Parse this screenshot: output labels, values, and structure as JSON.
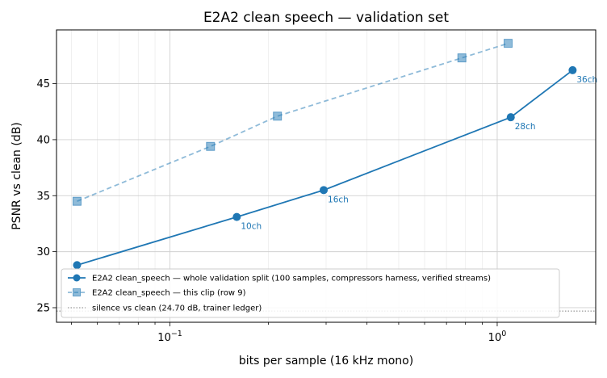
{
  "chart_data": {
    "type": "line",
    "title": "E2A2 clean speech — validation set",
    "xlabel": "bits per sample (16 kHz mono)",
    "ylabel": "PSNR vs clean (dB)",
    "xscale": "log",
    "xlim": [
      0.045,
      2.0
    ],
    "ylim": [
      23.7,
      49.8
    ],
    "x_ticks": [
      {
        "value": 0.1,
        "base": "10",
        "exp": "−1"
      },
      {
        "value": 1,
        "base": "10",
        "exp": "0"
      }
    ],
    "y_ticks": [
      25,
      30,
      35,
      40,
      45
    ],
    "grid": true,
    "legend_position": "lower-left",
    "series": [
      {
        "name": "E2A2 clean_speech — whole validation split (100 samples, compressors harness, verified streams)",
        "color": "#1f77b4",
        "style": "solid",
        "marker": "circle",
        "points": [
          {
            "x": 0.052,
            "y": 28.8,
            "label": ""
          },
          {
            "x": 0.16,
            "y": 33.1,
            "label": "10ch"
          },
          {
            "x": 0.295,
            "y": 35.5,
            "label": "16ch"
          },
          {
            "x": 1.1,
            "y": 42.0,
            "label": "28ch"
          },
          {
            "x": 1.7,
            "y": 46.2,
            "label": "36ch"
          }
        ]
      },
      {
        "name": "E2A2 clean_speech — this clip (row 9)",
        "color": "#1f77b4",
        "style": "dashed",
        "marker": "square",
        "points": [
          {
            "x": 0.052,
            "y": 34.5
          },
          {
            "x": 0.133,
            "y": 39.4
          },
          {
            "x": 0.213,
            "y": 42.1
          },
          {
            "x": 0.78,
            "y": 47.3
          },
          {
            "x": 1.08,
            "y": 48.6
          }
        ]
      }
    ],
    "reference_line": {
      "name": "silence vs clean (24.70 dB, trainer ledger)",
      "y": 24.7,
      "color": "#808080"
    }
  }
}
